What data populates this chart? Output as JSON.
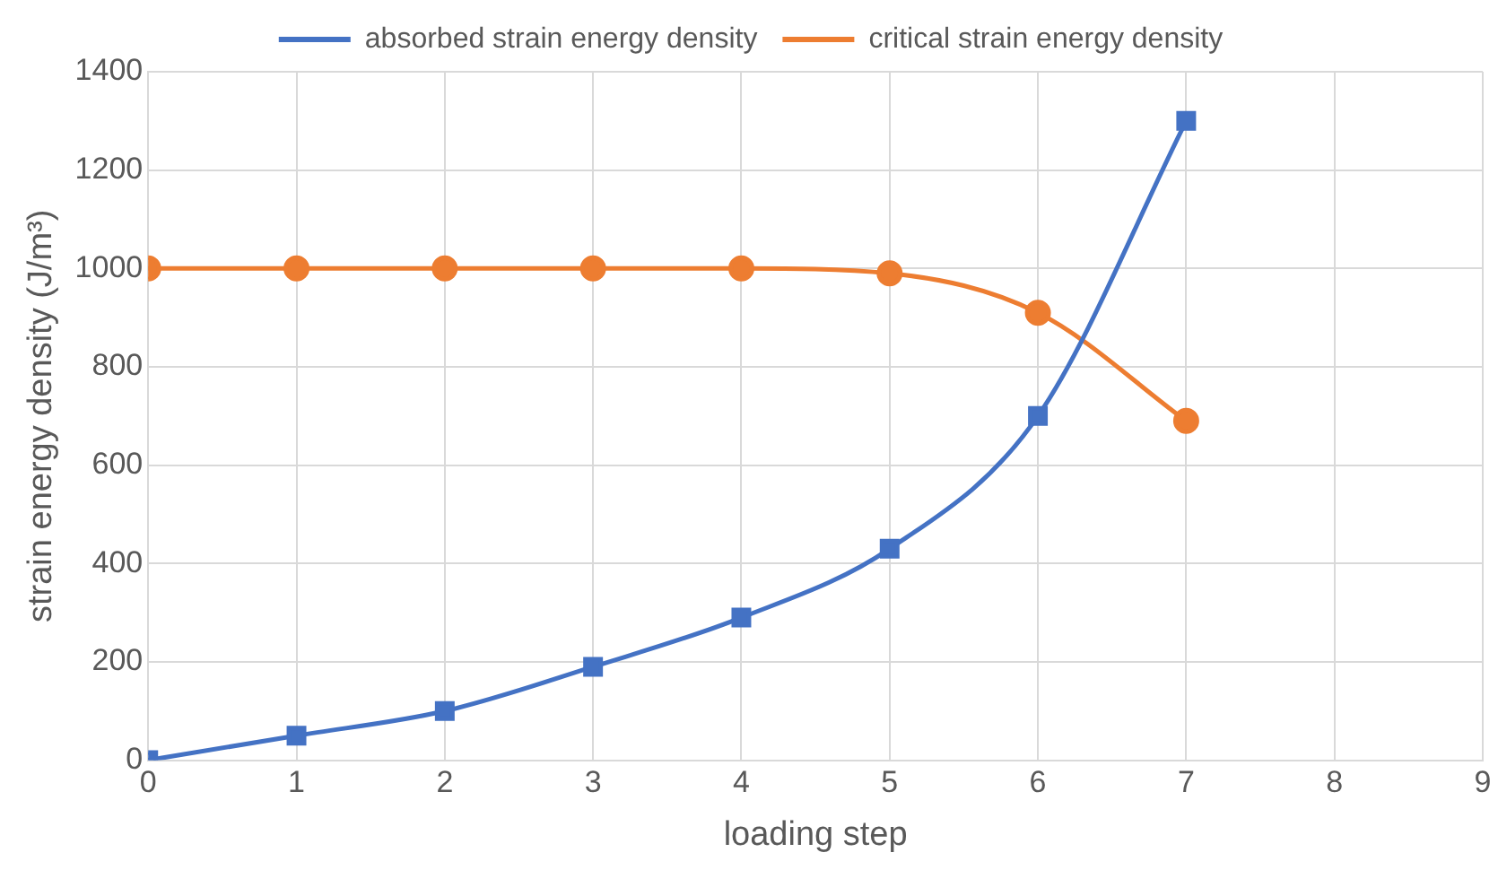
{
  "chart_data": {
    "type": "line",
    "xlabel": "loading step",
    "ylabel": "strain energy density (J/m³)",
    "x": [
      0,
      1,
      2,
      3,
      4,
      5,
      6,
      7
    ],
    "series": [
      {
        "name": "absorbed strain energy density",
        "color": "#4472c4",
        "marker": "square",
        "values": [
          0,
          50,
          100,
          190,
          290,
          430,
          700,
          1300
        ]
      },
      {
        "name": "critical strain energy density",
        "color": "#ed7d31",
        "marker": "circle",
        "values": [
          1000,
          1000,
          1000,
          1000,
          1000,
          990,
          910,
          690
        ]
      }
    ],
    "xlim": [
      0,
      9
    ],
    "xticks": [
      0,
      1,
      2,
      3,
      4,
      5,
      6,
      7,
      8,
      9
    ],
    "ylim": [
      0,
      1400
    ],
    "yticks": [
      0,
      200,
      400,
      600,
      800,
      1000,
      1200,
      1400
    ],
    "grid": true,
    "legend": "top",
    "line_style": "solid"
  }
}
